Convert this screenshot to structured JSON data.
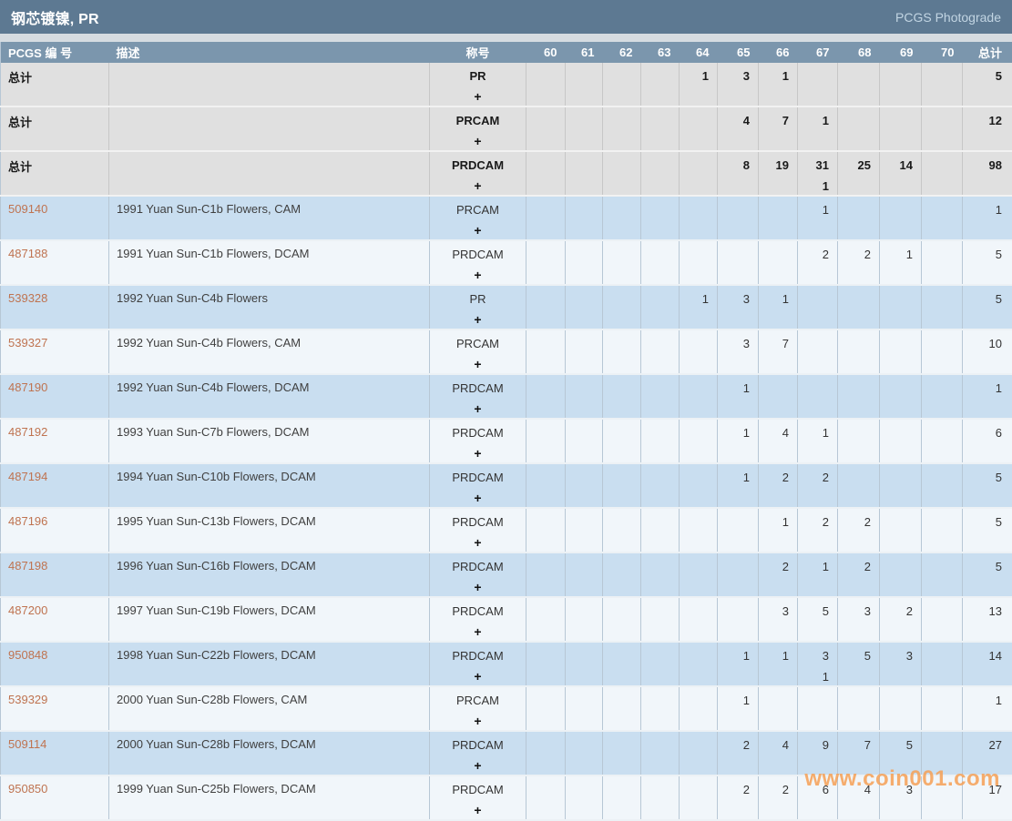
{
  "header": {
    "title": "钢芯镀镍, PR",
    "photograde_label": "PCGS Photograde"
  },
  "watermark": {
    "text": "www.coin001.com"
  },
  "colors": {
    "titlebar_bg": "#5d7992",
    "header_bg": "#7b96ad",
    "total_row_bg": "#e0e0e0",
    "row_blue": "#c9def0",
    "row_white": "#f1f6fa",
    "pcgs_link": "#bf7350",
    "watermark": "#f6a055",
    "border_blue": "#b7c7d5",
    "border_gray": "#c7c7c7",
    "photograde_text": "#c2d5e3",
    "gap_bg": "#d6dce1",
    "text_dark": "#333333"
  },
  "table": {
    "total_label": "总计",
    "plus_designation": "+",
    "columns": [
      {
        "key": "pcgs",
        "label": "PCGS 编 号"
      },
      {
        "key": "desc",
        "label": "描述"
      },
      {
        "key": "grade",
        "label": "称号"
      },
      {
        "key": "g60",
        "label": "60"
      },
      {
        "key": "g61",
        "label": "61"
      },
      {
        "key": "g62",
        "label": "62"
      },
      {
        "key": "g63",
        "label": "63"
      },
      {
        "key": "g64",
        "label": "64"
      },
      {
        "key": "g65",
        "label": "65"
      },
      {
        "key": "g66",
        "label": "66"
      },
      {
        "key": "g67",
        "label": "67"
      },
      {
        "key": "g68",
        "label": "68"
      },
      {
        "key": "g69",
        "label": "69"
      },
      {
        "key": "g70",
        "label": "70"
      },
      {
        "key": "total",
        "label": "总计"
      }
    ],
    "rows": [
      {
        "type": "total",
        "pcgs": "总计",
        "desc": "",
        "grade": "PR",
        "cells": [
          "",
          "",
          "",
          "",
          "1",
          "3",
          "1",
          "",
          "",
          "",
          "",
          "5"
        ]
      },
      {
        "type": "total",
        "pcgs": "总计",
        "desc": "",
        "grade": "PRCAM",
        "cells": [
          "",
          "",
          "",
          "",
          "",
          "4",
          "7",
          "1",
          "",
          "",
          "",
          "12"
        ]
      },
      {
        "type": "total",
        "pcgs": "总计",
        "desc": "",
        "grade": "PRDCAM",
        "cells": [
          "",
          "",
          "",
          "",
          "",
          "8",
          "19",
          "31\n1",
          "25",
          "14",
          "",
          "98"
        ]
      },
      {
        "type": "data",
        "pcgs": "509140",
        "desc": "1991 Yuan Sun-C1b Flowers, CAM",
        "grade": "PRCAM",
        "cells": [
          "",
          "",
          "",
          "",
          "",
          "",
          "",
          "1",
          "",
          "",
          "",
          "1"
        ]
      },
      {
        "type": "data",
        "pcgs": "487188",
        "desc": "1991 Yuan Sun-C1b Flowers, DCAM",
        "grade": "PRDCAM",
        "cells": [
          "",
          "",
          "",
          "",
          "",
          "",
          "",
          "2",
          "2",
          "1",
          "",
          "5"
        ]
      },
      {
        "type": "data",
        "pcgs": "539328",
        "desc": "1992 Yuan Sun-C4b Flowers",
        "grade": "PR",
        "cells": [
          "",
          "",
          "",
          "",
          "1",
          "3",
          "1",
          "",
          "",
          "",
          "",
          "5"
        ]
      },
      {
        "type": "data",
        "pcgs": "539327",
        "desc": "1992 Yuan Sun-C4b Flowers, CAM",
        "grade": "PRCAM",
        "cells": [
          "",
          "",
          "",
          "",
          "",
          "3",
          "7",
          "",
          "",
          "",
          "",
          "10"
        ]
      },
      {
        "type": "data",
        "pcgs": "487190",
        "desc": "1992 Yuan Sun-C4b Flowers, DCAM",
        "grade": "PRDCAM",
        "cells": [
          "",
          "",
          "",
          "",
          "",
          "1",
          "",
          "",
          "",
          "",
          "",
          "1"
        ]
      },
      {
        "type": "data",
        "pcgs": "487192",
        "desc": "1993 Yuan Sun-C7b Flowers, DCAM",
        "grade": "PRDCAM",
        "cells": [
          "",
          "",
          "",
          "",
          "",
          "1",
          "4",
          "1",
          "",
          "",
          "",
          "6"
        ]
      },
      {
        "type": "data",
        "pcgs": "487194",
        "desc": "1994 Yuan Sun-C10b Flowers, DCAM",
        "grade": "PRDCAM",
        "cells": [
          "",
          "",
          "",
          "",
          "",
          "1",
          "2",
          "2",
          "",
          "",
          "",
          "5"
        ]
      },
      {
        "type": "data",
        "pcgs": "487196",
        "desc": "1995 Yuan Sun-C13b Flowers, DCAM",
        "grade": "PRDCAM",
        "cells": [
          "",
          "",
          "",
          "",
          "",
          "",
          "1",
          "2",
          "2",
          "",
          "",
          "5"
        ]
      },
      {
        "type": "data",
        "pcgs": "487198",
        "desc": "1996 Yuan Sun-C16b Flowers, DCAM",
        "grade": "PRDCAM",
        "cells": [
          "",
          "",
          "",
          "",
          "",
          "",
          "2",
          "1",
          "2",
          "",
          "",
          "5"
        ]
      },
      {
        "type": "data",
        "pcgs": "487200",
        "desc": "1997 Yuan Sun-C19b Flowers, DCAM",
        "grade": "PRDCAM",
        "cells": [
          "",
          "",
          "",
          "",
          "",
          "",
          "3",
          "5",
          "3",
          "2",
          "",
          "13"
        ]
      },
      {
        "type": "data",
        "pcgs": "950848",
        "desc": "1998 Yuan Sun-C22b Flowers, DCAM",
        "grade": "PRDCAM",
        "cells": [
          "",
          "",
          "",
          "",
          "",
          "1",
          "1",
          "3\n1",
          "5",
          "3",
          "",
          "14"
        ]
      },
      {
        "type": "data",
        "pcgs": "539329",
        "desc": "2000 Yuan Sun-C28b Flowers, CAM",
        "grade": "PRCAM",
        "cells": [
          "",
          "",
          "",
          "",
          "",
          "1",
          "",
          "",
          "",
          "",
          "",
          "1"
        ]
      },
      {
        "type": "data",
        "pcgs": "509114",
        "desc": "2000 Yuan Sun-C28b Flowers, DCAM",
        "grade": "PRDCAM",
        "cells": [
          "",
          "",
          "",
          "",
          "",
          "2",
          "4",
          "9",
          "7",
          "5",
          "",
          "27"
        ]
      },
      {
        "type": "data",
        "pcgs": "950850",
        "desc": "1999 Yuan Sun-C25b Flowers, DCAM",
        "grade": "PRDCAM",
        "cells": [
          "",
          "",
          "",
          "",
          "",
          "2",
          "2",
          "6",
          "4",
          "3",
          "",
          "17"
        ]
      }
    ]
  }
}
